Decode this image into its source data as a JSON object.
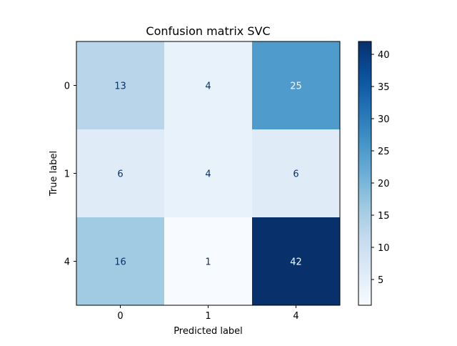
{
  "chart_data": {
    "type": "heatmap",
    "title": "Confusion matrix SVC",
    "xlabel": "Predicted label",
    "ylabel": "True label",
    "x_categories": [
      "0",
      "1",
      "4"
    ],
    "y_categories": [
      "0",
      "1",
      "4"
    ],
    "values": [
      [
        13,
        4,
        25
      ],
      [
        6,
        4,
        6
      ],
      [
        16,
        1,
        42
      ]
    ],
    "colormap": "Blues",
    "value_range": [
      1,
      42
    ],
    "colorbar_ticks": [
      5,
      10,
      15,
      20,
      25,
      30,
      35,
      40
    ],
    "label_color_light": "#08306b",
    "label_color_dark": "#f7fbff",
    "grid": false,
    "legend": "colorbar-right"
  }
}
